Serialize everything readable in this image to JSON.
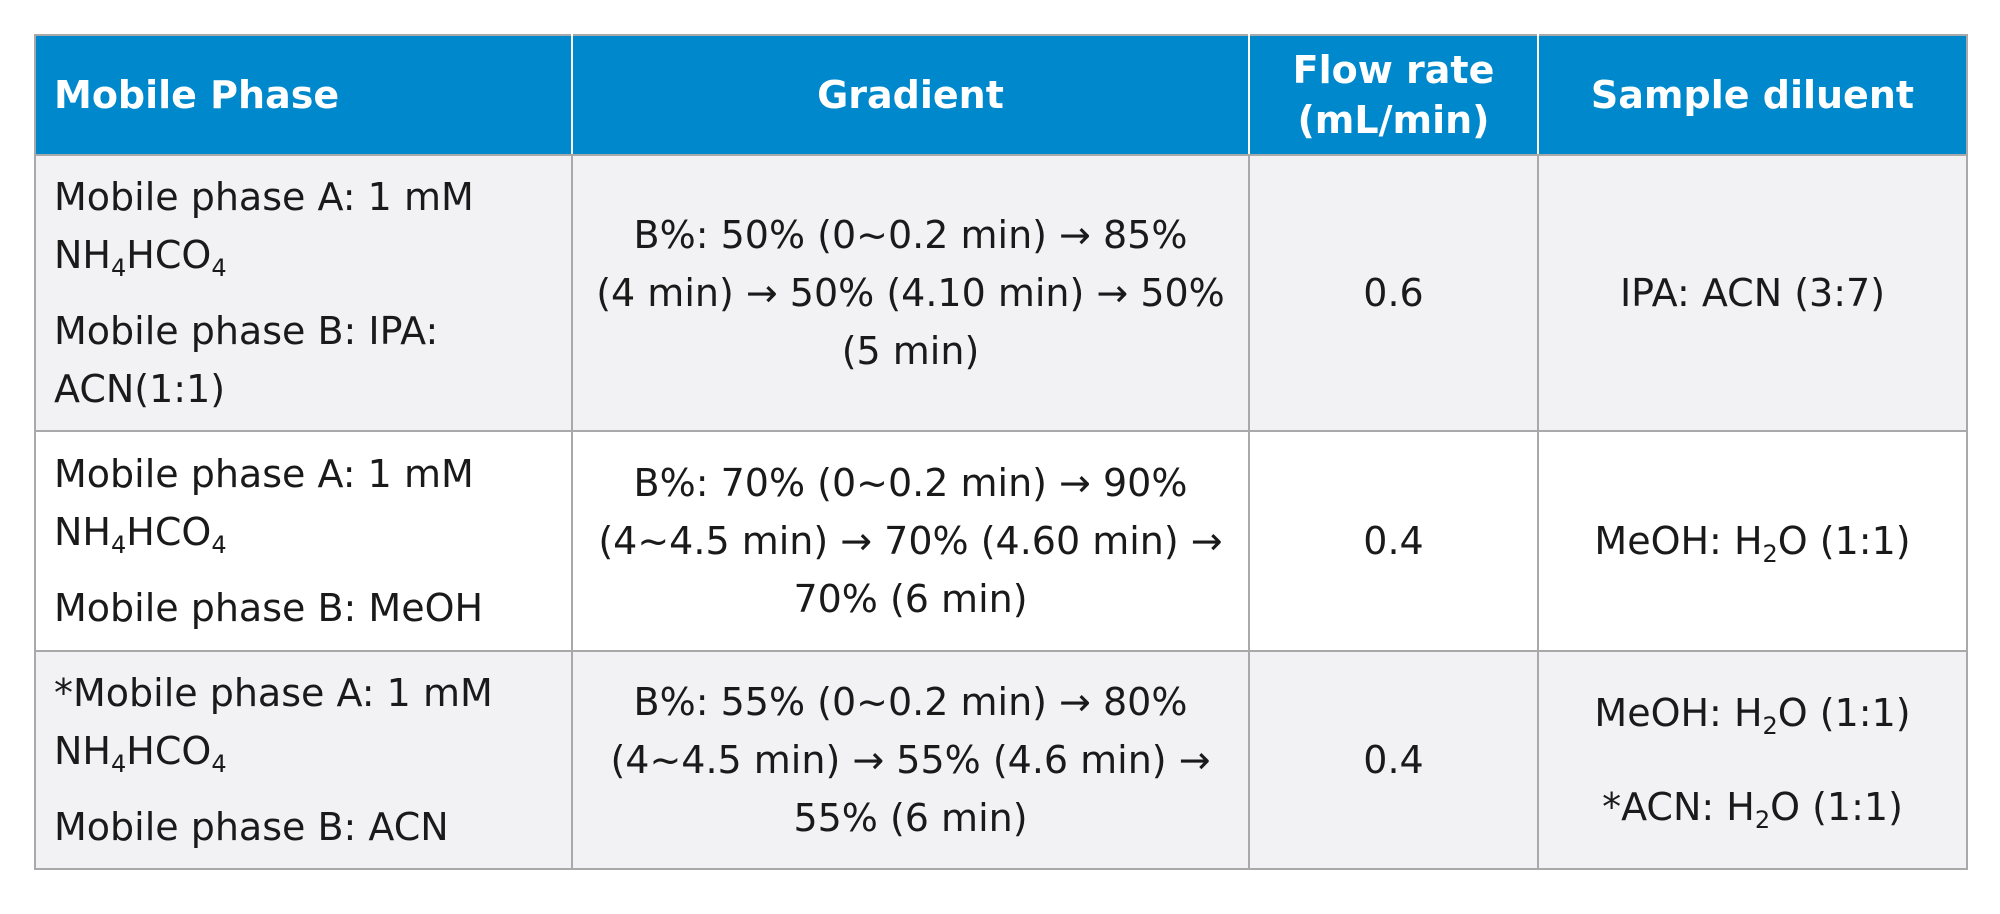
{
  "headers": {
    "mobile_phase": "Mobile Phase",
    "gradient": "Gradient",
    "flow_rate_line1": "Flow rate",
    "flow_rate_line2": "(mL/min)",
    "sample_diluent": "Sample diluent"
  },
  "rows": [
    {
      "mp_a_label": "Mobile phase A: 1 mM",
      "mp_a_compound": {
        "p1": "NH",
        "s1": "4",
        "p2": "HCO",
        "s2": "4"
      },
      "mp_b_line1": "Mobile phase B: IPA:",
      "mp_b_line2": "ACN(1:1)",
      "gradient_line1": "B%: 50% (0~0.2 min) → 85%",
      "gradient_line2": "(4 min) → 50% (4.10 min) → 50%",
      "gradient_line3": "(5 min)",
      "flow_rate": "0.6",
      "diluent": "IPA: ACN (3:7)"
    },
    {
      "mp_a_label": "Mobile phase A: 1 mM",
      "mp_a_compound": {
        "p1": "NH",
        "s1": "4",
        "p2": "HCO",
        "s2": "4"
      },
      "mp_b_line1": "Mobile phase B: MeOH",
      "gradient_line1": "B%: 70% (0~0.2 min) → 90%",
      "gradient_line2": "(4~4.5 min) → 70% (4.60 min) →",
      "gradient_line3": "70% (6 min)",
      "flow_rate": "0.4",
      "diluent": {
        "p1": "MeOH: H",
        "s1": "2",
        "p2": "O (1:1)"
      }
    },
    {
      "mp_a_label": "*Mobile phase A: 1 mM",
      "mp_a_compound": {
        "p1": "NH",
        "s1": "4",
        "p2": "HCO",
        "s2": "4"
      },
      "mp_b_line1": "Mobile phase B: ACN",
      "gradient_line1": "B%: 55% (0~0.2 min) → 80%",
      "gradient_line2": "(4~4.5 min) → 55% (4.6 min) →",
      "gradient_line3": "55% (6 min)",
      "flow_rate": "0.4",
      "diluent": {
        "p1": "MeOH: H",
        "s1": "2",
        "p2": "O (1:1)"
      },
      "diluent_alt": {
        "p1": "*ACN: H",
        "s1": "2",
        "p2": "O (1:1)"
      }
    }
  ]
}
